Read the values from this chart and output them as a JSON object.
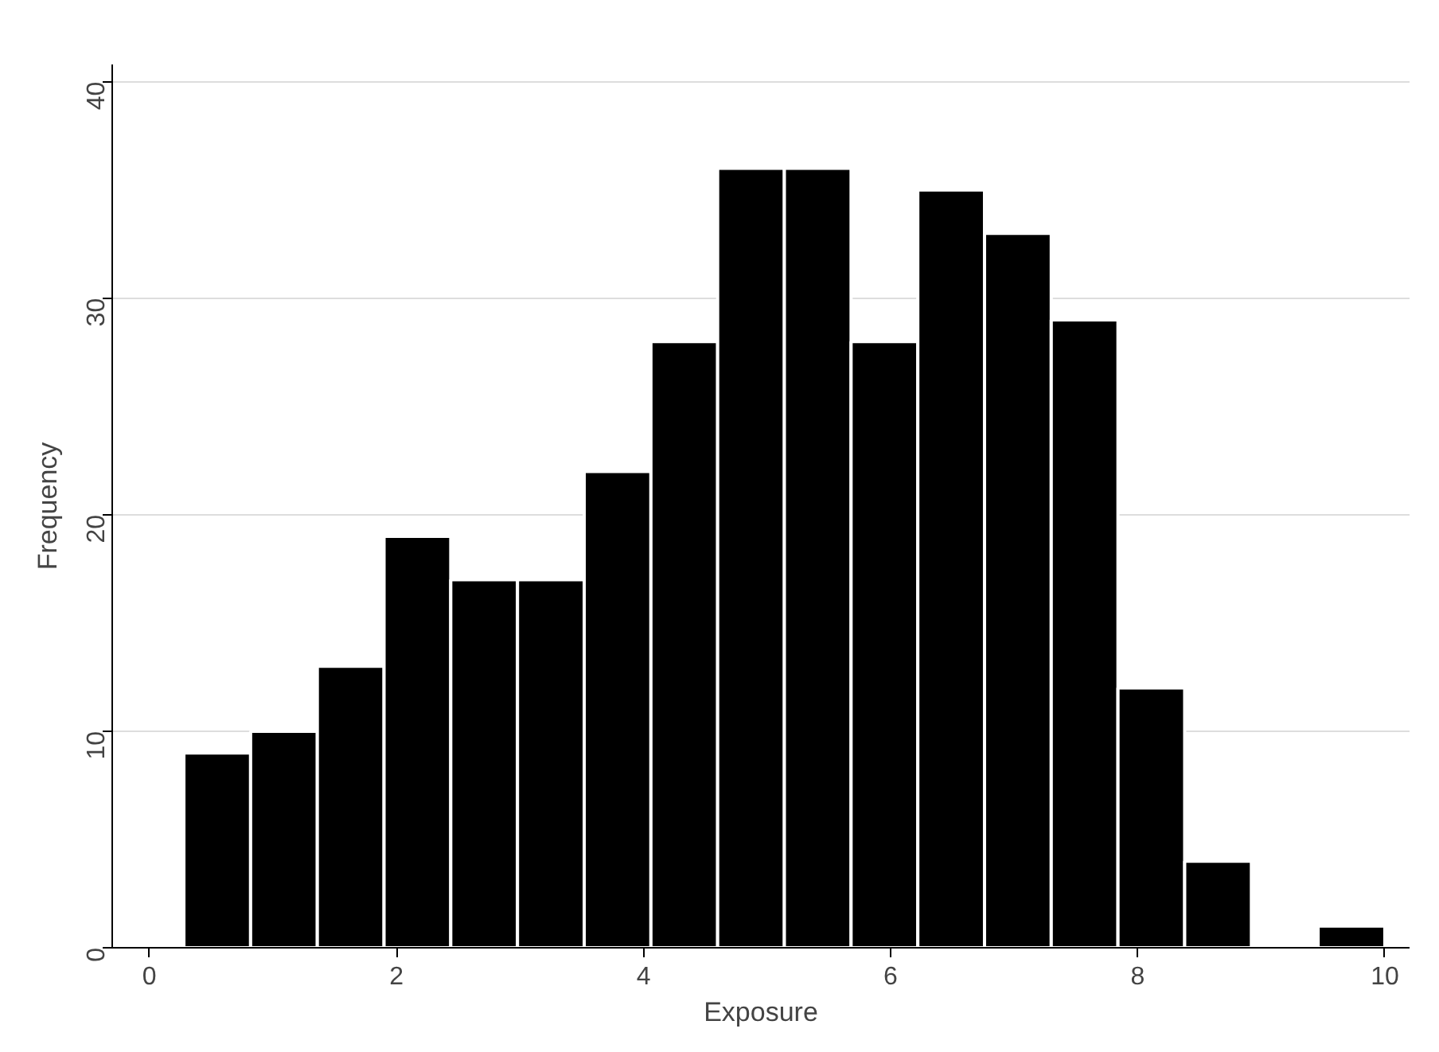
{
  "chart_data": {
    "type": "histogram",
    "xlabel": "Exposure",
    "ylabel": "Frequency",
    "bins": [
      0.28,
      0.82,
      1.36,
      1.9,
      2.44,
      2.98,
      3.52,
      4.06,
      4.6,
      5.14,
      5.68,
      6.22,
      6.76,
      7.3,
      7.84,
      8.38,
      8.92,
      9.46,
      10.0
    ],
    "values": [
      9,
      10,
      13,
      19,
      17,
      17,
      22,
      28,
      36,
      36,
      28,
      35,
      33,
      29,
      12,
      4,
      0,
      1
    ],
    "color": "#000000",
    "xlim": [
      -0.3,
      10.2
    ],
    "ylim": [
      0,
      40
    ],
    "xticks": [
      0,
      2,
      4,
      6,
      8,
      10
    ],
    "yticks": [
      0,
      10,
      20,
      30,
      40
    ],
    "grid": "y"
  }
}
